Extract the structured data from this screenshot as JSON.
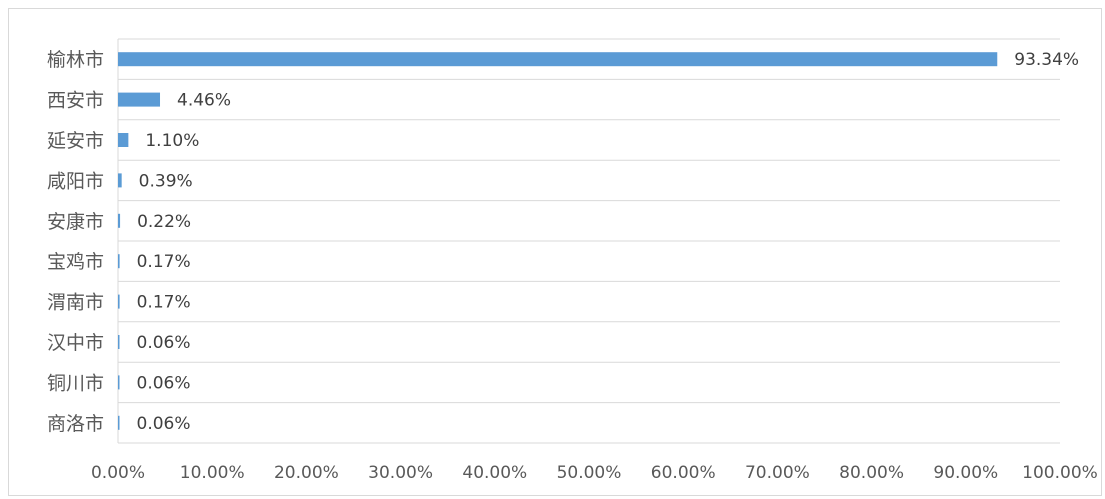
{
  "chart_data": {
    "type": "bar",
    "orientation": "horizontal",
    "categories": [
      "榆林市",
      "西安市",
      "延安市",
      "咸阳市",
      "安康市",
      "宝鸡市",
      "渭南市",
      "汉中市",
      "铜川市",
      "商洛市"
    ],
    "values": [
      93.34,
      4.46,
      1.1,
      0.39,
      0.22,
      0.17,
      0.17,
      0.06,
      0.06,
      0.06
    ],
    "value_labels": [
      "93.34%",
      "4.46%",
      "1.10%",
      "0.39%",
      "0.22%",
      "0.17%",
      "0.17%",
      "0.06%",
      "0.06%",
      "0.06%"
    ],
    "xlim": [
      0,
      100
    ],
    "x_ticks": [
      "0.00%",
      "10.00%",
      "20.00%",
      "30.00%",
      "40.00%",
      "50.00%",
      "60.00%",
      "70.00%",
      "80.00%",
      "90.00%",
      "100.00%"
    ],
    "title": "",
    "xlabel": "",
    "ylabel": "",
    "grid": true,
    "legend": "none",
    "colors": {
      "bar": "#5b9bd5",
      "grid": "#d9d9d9",
      "text": "#595959"
    }
  }
}
